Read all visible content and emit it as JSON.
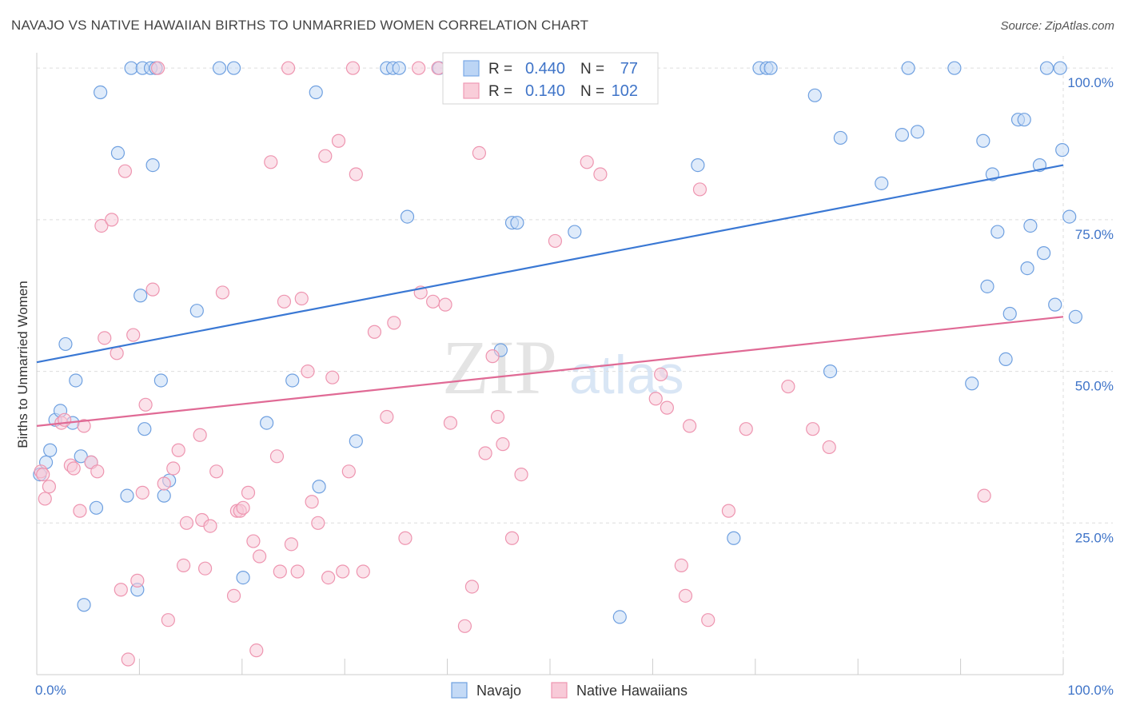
{
  "title": "NAVAJO VS NATIVE HAWAIIAN BIRTHS TO UNMARRIED WOMEN CORRELATION CHART",
  "source": "Source: ZipAtlas.com",
  "watermark": {
    "zip": "ZIP",
    "atlas": "atlas"
  },
  "legend_box": {
    "rows": [
      {
        "r_label": "R =",
        "r_value": "0.440",
        "n_label": "N =",
        "n_value": "77",
        "color": "#7aa9e6",
        "fill": "#bcd5f5"
      },
      {
        "r_label": "R =",
        "r_value": "0.140",
        "n_label": "N =",
        "n_value": "102",
        "color": "#ef9ab5",
        "fill": "#f9cdd9"
      }
    ]
  },
  "chart_data": {
    "type": "scatter",
    "title": "NAVAJO VS NATIVE HAWAIIAN BIRTHS TO UNMARRIED WOMEN CORRELATION CHART",
    "xlabel": "",
    "ylabel": "Births to Unmarried Women",
    "xlim": [
      0,
      100
    ],
    "ylim": [
      0,
      102
    ],
    "x_tick_labels": [
      "0.0%",
      "100.0%"
    ],
    "y_tick_labels": [
      "25.0%",
      "50.0%",
      "75.0%",
      "100.0%"
    ],
    "y_tick_values": [
      25,
      50,
      75,
      100
    ],
    "grid": true,
    "legend": [
      "Navajo",
      "Native Hawaiians"
    ],
    "series": [
      {
        "name": "Navajo",
        "color": "#6fa0e0",
        "fill": "#c4daf6",
        "trend": {
          "x": [
            0,
            100
          ],
          "y": [
            51.5,
            84.0
          ],
          "color": "#3a78d4"
        },
        "points": [
          [
            0.3,
            33
          ],
          [
            0.9,
            35
          ],
          [
            1.3,
            37
          ],
          [
            1.8,
            42
          ],
          [
            2.3,
            43.5
          ],
          [
            2.8,
            54.5
          ],
          [
            3.5,
            41.5
          ],
          [
            3.8,
            48.5
          ],
          [
            4.3,
            36
          ],
          [
            4.6,
            11.5
          ],
          [
            5.3,
            35
          ],
          [
            5.8,
            27.5
          ],
          [
            6.2,
            96
          ],
          [
            7.9,
            86
          ],
          [
            8.8,
            29.5
          ],
          [
            9.2,
            100
          ],
          [
            9.8,
            14
          ],
          [
            10.1,
            62.5
          ],
          [
            10.3,
            100
          ],
          [
            10.5,
            40.5
          ],
          [
            11.1,
            100
          ],
          [
            11.3,
            84
          ],
          [
            11.6,
            100
          ],
          [
            12.1,
            48.5
          ],
          [
            12.4,
            29.5
          ],
          [
            12.9,
            32
          ],
          [
            15.6,
            60
          ],
          [
            17.8,
            100
          ],
          [
            19.2,
            100
          ],
          [
            20.1,
            16
          ],
          [
            22.4,
            41.5
          ],
          [
            24.9,
            48.5
          ],
          [
            27.2,
            96
          ],
          [
            27.5,
            31
          ],
          [
            31.1,
            38.5
          ],
          [
            34.1,
            100
          ],
          [
            34.7,
            100
          ],
          [
            35.3,
            100
          ],
          [
            36.1,
            75.5
          ],
          [
            39.2,
            100
          ],
          [
            45.2,
            53.5
          ],
          [
            46.3,
            74.5
          ],
          [
            46.8,
            74.5
          ],
          [
            52.4,
            73
          ],
          [
            56.8,
            9.5
          ],
          [
            64.4,
            84
          ],
          [
            67.9,
            22.5
          ],
          [
            70.4,
            100
          ],
          [
            71.1,
            100
          ],
          [
            71.5,
            100
          ],
          [
            75.8,
            95.5
          ],
          [
            77.3,
            50
          ],
          [
            78.3,
            88.5
          ],
          [
            82.3,
            81
          ],
          [
            84.3,
            89
          ],
          [
            84.9,
            100
          ],
          [
            85.8,
            89.5
          ],
          [
            89.4,
            100
          ],
          [
            91.1,
            48
          ],
          [
            92.2,
            88
          ],
          [
            92.6,
            64
          ],
          [
            93.1,
            82.5
          ],
          [
            93.6,
            73
          ],
          [
            94.4,
            52
          ],
          [
            94.8,
            59.5
          ],
          [
            95.6,
            91.5
          ],
          [
            96.2,
            91.5
          ],
          [
            96.5,
            67
          ],
          [
            96.8,
            74
          ],
          [
            97.7,
            84
          ],
          [
            98.1,
            69.5
          ],
          [
            98.4,
            100
          ],
          [
            99.2,
            61
          ],
          [
            99.7,
            100
          ],
          [
            99.9,
            86.5
          ],
          [
            100.6,
            75.5
          ],
          [
            101.2,
            59
          ]
        ]
      },
      {
        "name": "Native Hawaiians",
        "color": "#ee95b0",
        "fill": "#f8cad8",
        "trend": {
          "x": [
            0,
            100
          ],
          "y": [
            41.0,
            59.0
          ],
          "color": "#e06a95"
        },
        "points": [
          [
            0.4,
            33.5
          ],
          [
            0.6,
            33
          ],
          [
            0.8,
            29
          ],
          [
            1.2,
            31
          ],
          [
            2.4,
            41.5
          ],
          [
            2.7,
            42
          ],
          [
            3.3,
            34.5
          ],
          [
            3.6,
            34
          ],
          [
            4.2,
            27
          ],
          [
            4.6,
            41
          ],
          [
            5.3,
            35
          ],
          [
            5.9,
            33.5
          ],
          [
            6.3,
            74
          ],
          [
            6.6,
            55.5
          ],
          [
            7.3,
            75
          ],
          [
            7.8,
            53
          ],
          [
            8.2,
            14
          ],
          [
            8.6,
            83
          ],
          [
            8.9,
            2.5
          ],
          [
            9.4,
            56
          ],
          [
            9.8,
            15.5
          ],
          [
            10.3,
            30
          ],
          [
            10.6,
            44.5
          ],
          [
            11.3,
            63.5
          ],
          [
            11.8,
            100
          ],
          [
            12.4,
            31.5
          ],
          [
            12.8,
            9
          ],
          [
            13.3,
            34
          ],
          [
            13.8,
            37
          ],
          [
            14.3,
            18
          ],
          [
            14.6,
            25
          ],
          [
            15.9,
            39.5
          ],
          [
            16.1,
            25.5
          ],
          [
            16.4,
            17.5
          ],
          [
            16.9,
            24.5
          ],
          [
            17.5,
            33.5
          ],
          [
            18.1,
            63
          ],
          [
            19.2,
            13
          ],
          [
            19.5,
            27
          ],
          [
            19.8,
            27
          ],
          [
            20.1,
            27.5
          ],
          [
            20.6,
            30
          ],
          [
            21.1,
            22
          ],
          [
            21.4,
            4
          ],
          [
            21.7,
            19.5
          ],
          [
            22.8,
            84.5
          ],
          [
            23.4,
            36
          ],
          [
            23.7,
            17
          ],
          [
            24.1,
            61.5
          ],
          [
            24.5,
            100
          ],
          [
            24.8,
            21.5
          ],
          [
            25.4,
            17
          ],
          [
            25.8,
            62
          ],
          [
            26.4,
            50
          ],
          [
            26.8,
            28.5
          ],
          [
            27.4,
            25
          ],
          [
            28.1,
            85.5
          ],
          [
            28.4,
            16
          ],
          [
            28.8,
            49
          ],
          [
            29.4,
            88
          ],
          [
            29.8,
            17
          ],
          [
            30.4,
            33.5
          ],
          [
            30.8,
            100
          ],
          [
            31.1,
            82.5
          ],
          [
            31.8,
            17
          ],
          [
            32.9,
            56.5
          ],
          [
            34.1,
            42.5
          ],
          [
            34.8,
            58
          ],
          [
            35.9,
            22.5
          ],
          [
            37.2,
            100
          ],
          [
            37.4,
            63
          ],
          [
            38.6,
            61.5
          ],
          [
            39.1,
            100
          ],
          [
            39.8,
            61
          ],
          [
            40.3,
            41.5
          ],
          [
            41.7,
            8
          ],
          [
            42.4,
            14.5
          ],
          [
            43.1,
            86
          ],
          [
            43.7,
            36.5
          ],
          [
            44.4,
            52.5
          ],
          [
            44.9,
            42.5
          ],
          [
            45.4,
            38
          ],
          [
            46.3,
            22.5
          ],
          [
            47.2,
            33
          ],
          [
            50.5,
            71.5
          ],
          [
            51.8,
            100
          ],
          [
            53.6,
            84.5
          ],
          [
            54.9,
            82.5
          ],
          [
            60.3,
            45.5
          ],
          [
            60.8,
            49.5
          ],
          [
            61.4,
            44
          ],
          [
            62.8,
            18
          ],
          [
            63.2,
            13
          ],
          [
            63.6,
            41
          ],
          [
            64.6,
            80
          ],
          [
            65.4,
            9
          ],
          [
            67.4,
            27
          ],
          [
            69.1,
            40.5
          ],
          [
            73.2,
            47.5
          ],
          [
            75.6,
            40.5
          ],
          [
            77.2,
            37.5
          ],
          [
            92.3,
            29.5
          ]
        ]
      }
    ]
  },
  "bottom_legend": [
    {
      "label": "Navajo",
      "color": "#6fa0e0",
      "fill": "#c4daf6"
    },
    {
      "label": "Native Hawaiians",
      "color": "#ee95b0",
      "fill": "#f8cad8"
    }
  ]
}
